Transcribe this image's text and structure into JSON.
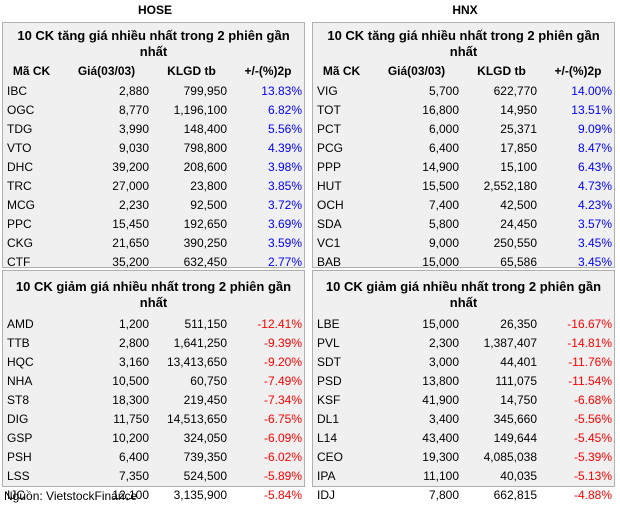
{
  "exchanges": {
    "left": "HOSE",
    "right": "HNX"
  },
  "columns": [
    "Mã CK",
    "Giá(03/03)",
    "KLGD tb",
    "+/-(%)2p"
  ],
  "panels": {
    "hose_up": {
      "title": "10 CK tăng giá nhiều nhất trong 2 phiên gần nhất",
      "rows": [
        [
          "IBC",
          "2,880",
          "799,950",
          "13.83%"
        ],
        [
          "OGC",
          "8,770",
          "1,196,100",
          "6.82%"
        ],
        [
          "TDG",
          "3,990",
          "148,400",
          "5.56%"
        ],
        [
          "VTO",
          "9,030",
          "798,800",
          "4.39%"
        ],
        [
          "DHC",
          "39,200",
          "208,600",
          "3.98%"
        ],
        [
          "TRC",
          "27,000",
          "23,800",
          "3.85%"
        ],
        [
          "MCG",
          "2,230",
          "92,500",
          "3.72%"
        ],
        [
          "PPC",
          "15,450",
          "192,650",
          "3.69%"
        ],
        [
          "CKG",
          "21,650",
          "390,250",
          "3.59%"
        ],
        [
          "CTF",
          "35,200",
          "632,450",
          "2.77%"
        ]
      ]
    },
    "hnx_up": {
      "title": "10 CK tăng giá nhiều nhất trong 2 phiên gần nhất",
      "rows": [
        [
          "VIG",
          "5,700",
          "622,770",
          "14.00%"
        ],
        [
          "TOT",
          "16,800",
          "14,950",
          "13.51%"
        ],
        [
          "PCT",
          "6,000",
          "25,371",
          "9.09%"
        ],
        [
          "PCG",
          "6,400",
          "17,850",
          "8.47%"
        ],
        [
          "PPP",
          "14,900",
          "15,100",
          "6.43%"
        ],
        [
          "HUT",
          "15,500",
          "2,552,180",
          "4.73%"
        ],
        [
          "OCH",
          "7,400",
          "42,500",
          "4.23%"
        ],
        [
          "SDA",
          "5,800",
          "24,450",
          "3.57%"
        ],
        [
          "VC1",
          "9,000",
          "250,550",
          "3.45%"
        ],
        [
          "BAB",
          "15,000",
          "65,586",
          "3.45%"
        ]
      ]
    },
    "hose_down": {
      "title": "10 CK giảm giá nhiều nhất trong 2 phiên gần nhất",
      "rows": [
        [
          "AMD",
          "1,200",
          "511,150",
          "-12.41%"
        ],
        [
          "TTB",
          "2,800",
          "1,641,250",
          "-9.39%"
        ],
        [
          "HQC",
          "3,160",
          "13,413,650",
          "-9.20%"
        ],
        [
          "NHA",
          "10,500",
          "60,750",
          "-7.49%"
        ],
        [
          "ST8",
          "18,300",
          "219,450",
          "-7.34%"
        ],
        [
          "DIG",
          "11,750",
          "14,513,650",
          "-6.75%"
        ],
        [
          "GSP",
          "10,200",
          "324,050",
          "-6.09%"
        ],
        [
          "PSH",
          "6,400",
          "739,350",
          "-6.02%"
        ],
        [
          "LSS",
          "7,350",
          "524,500",
          "-5.89%"
        ],
        [
          "IJC",
          "12,100",
          "3,135,900",
          "-5.84%"
        ]
      ]
    },
    "hnx_down": {
      "title": "10 CK giảm giá nhiều nhất trong 2 phiên gần nhất",
      "rows": [
        [
          "LBE",
          "15,000",
          "26,350",
          "-16.67%"
        ],
        [
          "PVL",
          "2,300",
          "1,387,407",
          "-14.81%"
        ],
        [
          "SDT",
          "3,000",
          "44,401",
          "-11.76%"
        ],
        [
          "PSD",
          "13,800",
          "111,075",
          "-11.54%"
        ],
        [
          "KSF",
          "41,900",
          "14,750",
          "-6.68%"
        ],
        [
          "DL1",
          "3,400",
          "345,660",
          "-5.56%"
        ],
        [
          "L14",
          "43,400",
          "149,644",
          "-5.45%"
        ],
        [
          "CEO",
          "19,300",
          "4,085,038",
          "-5.39%"
        ],
        [
          "IPA",
          "11,100",
          "40,035",
          "-5.13%"
        ],
        [
          "IDJ",
          "7,800",
          "662,815",
          "-4.88%"
        ]
      ]
    }
  },
  "colors": {
    "positive": "#0000ff",
    "negative": "#ff0000",
    "panel_bg": "#f0f0f0"
  },
  "source": "Nguồn: VietstockFinance"
}
